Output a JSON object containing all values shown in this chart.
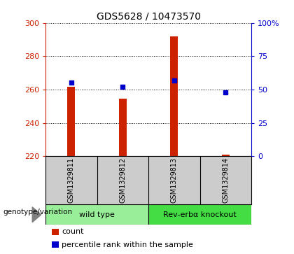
{
  "title": "GDS5628 / 10473570",
  "samples": [
    "GSM1329811",
    "GSM1329812",
    "GSM1329813",
    "GSM1329814"
  ],
  "count_values": [
    261.5,
    254.5,
    292.0,
    221.0
  ],
  "percentile_values": [
    55.0,
    52.0,
    57.0,
    48.0
  ],
  "ylim_left": [
    220,
    300
  ],
  "ylim_right": [
    0,
    100
  ],
  "yticks_left": [
    220,
    240,
    260,
    280,
    300
  ],
  "yticks_right": [
    0,
    25,
    50,
    75,
    100
  ],
  "ytick_labels_right": [
    "0",
    "25",
    "50",
    "75",
    "100%"
  ],
  "groups": [
    {
      "label": "wild type",
      "indices": [
        0,
        1
      ],
      "color": "#99ee99"
    },
    {
      "label": "Rev-erbα knockout",
      "indices": [
        2,
        3
      ],
      "color": "#44dd44"
    }
  ],
  "bar_color": "#cc2200",
  "marker_color": "#0000cc",
  "bar_width": 0.15,
  "grid_color": "#000000",
  "background_color": "#ffffff",
  "plot_bg_color": "#ffffff",
  "label_area_color": "#cccccc",
  "legend_count_label": "count",
  "legend_pct_label": "percentile rank within the sample",
  "genotype_label": "genotype/variation"
}
